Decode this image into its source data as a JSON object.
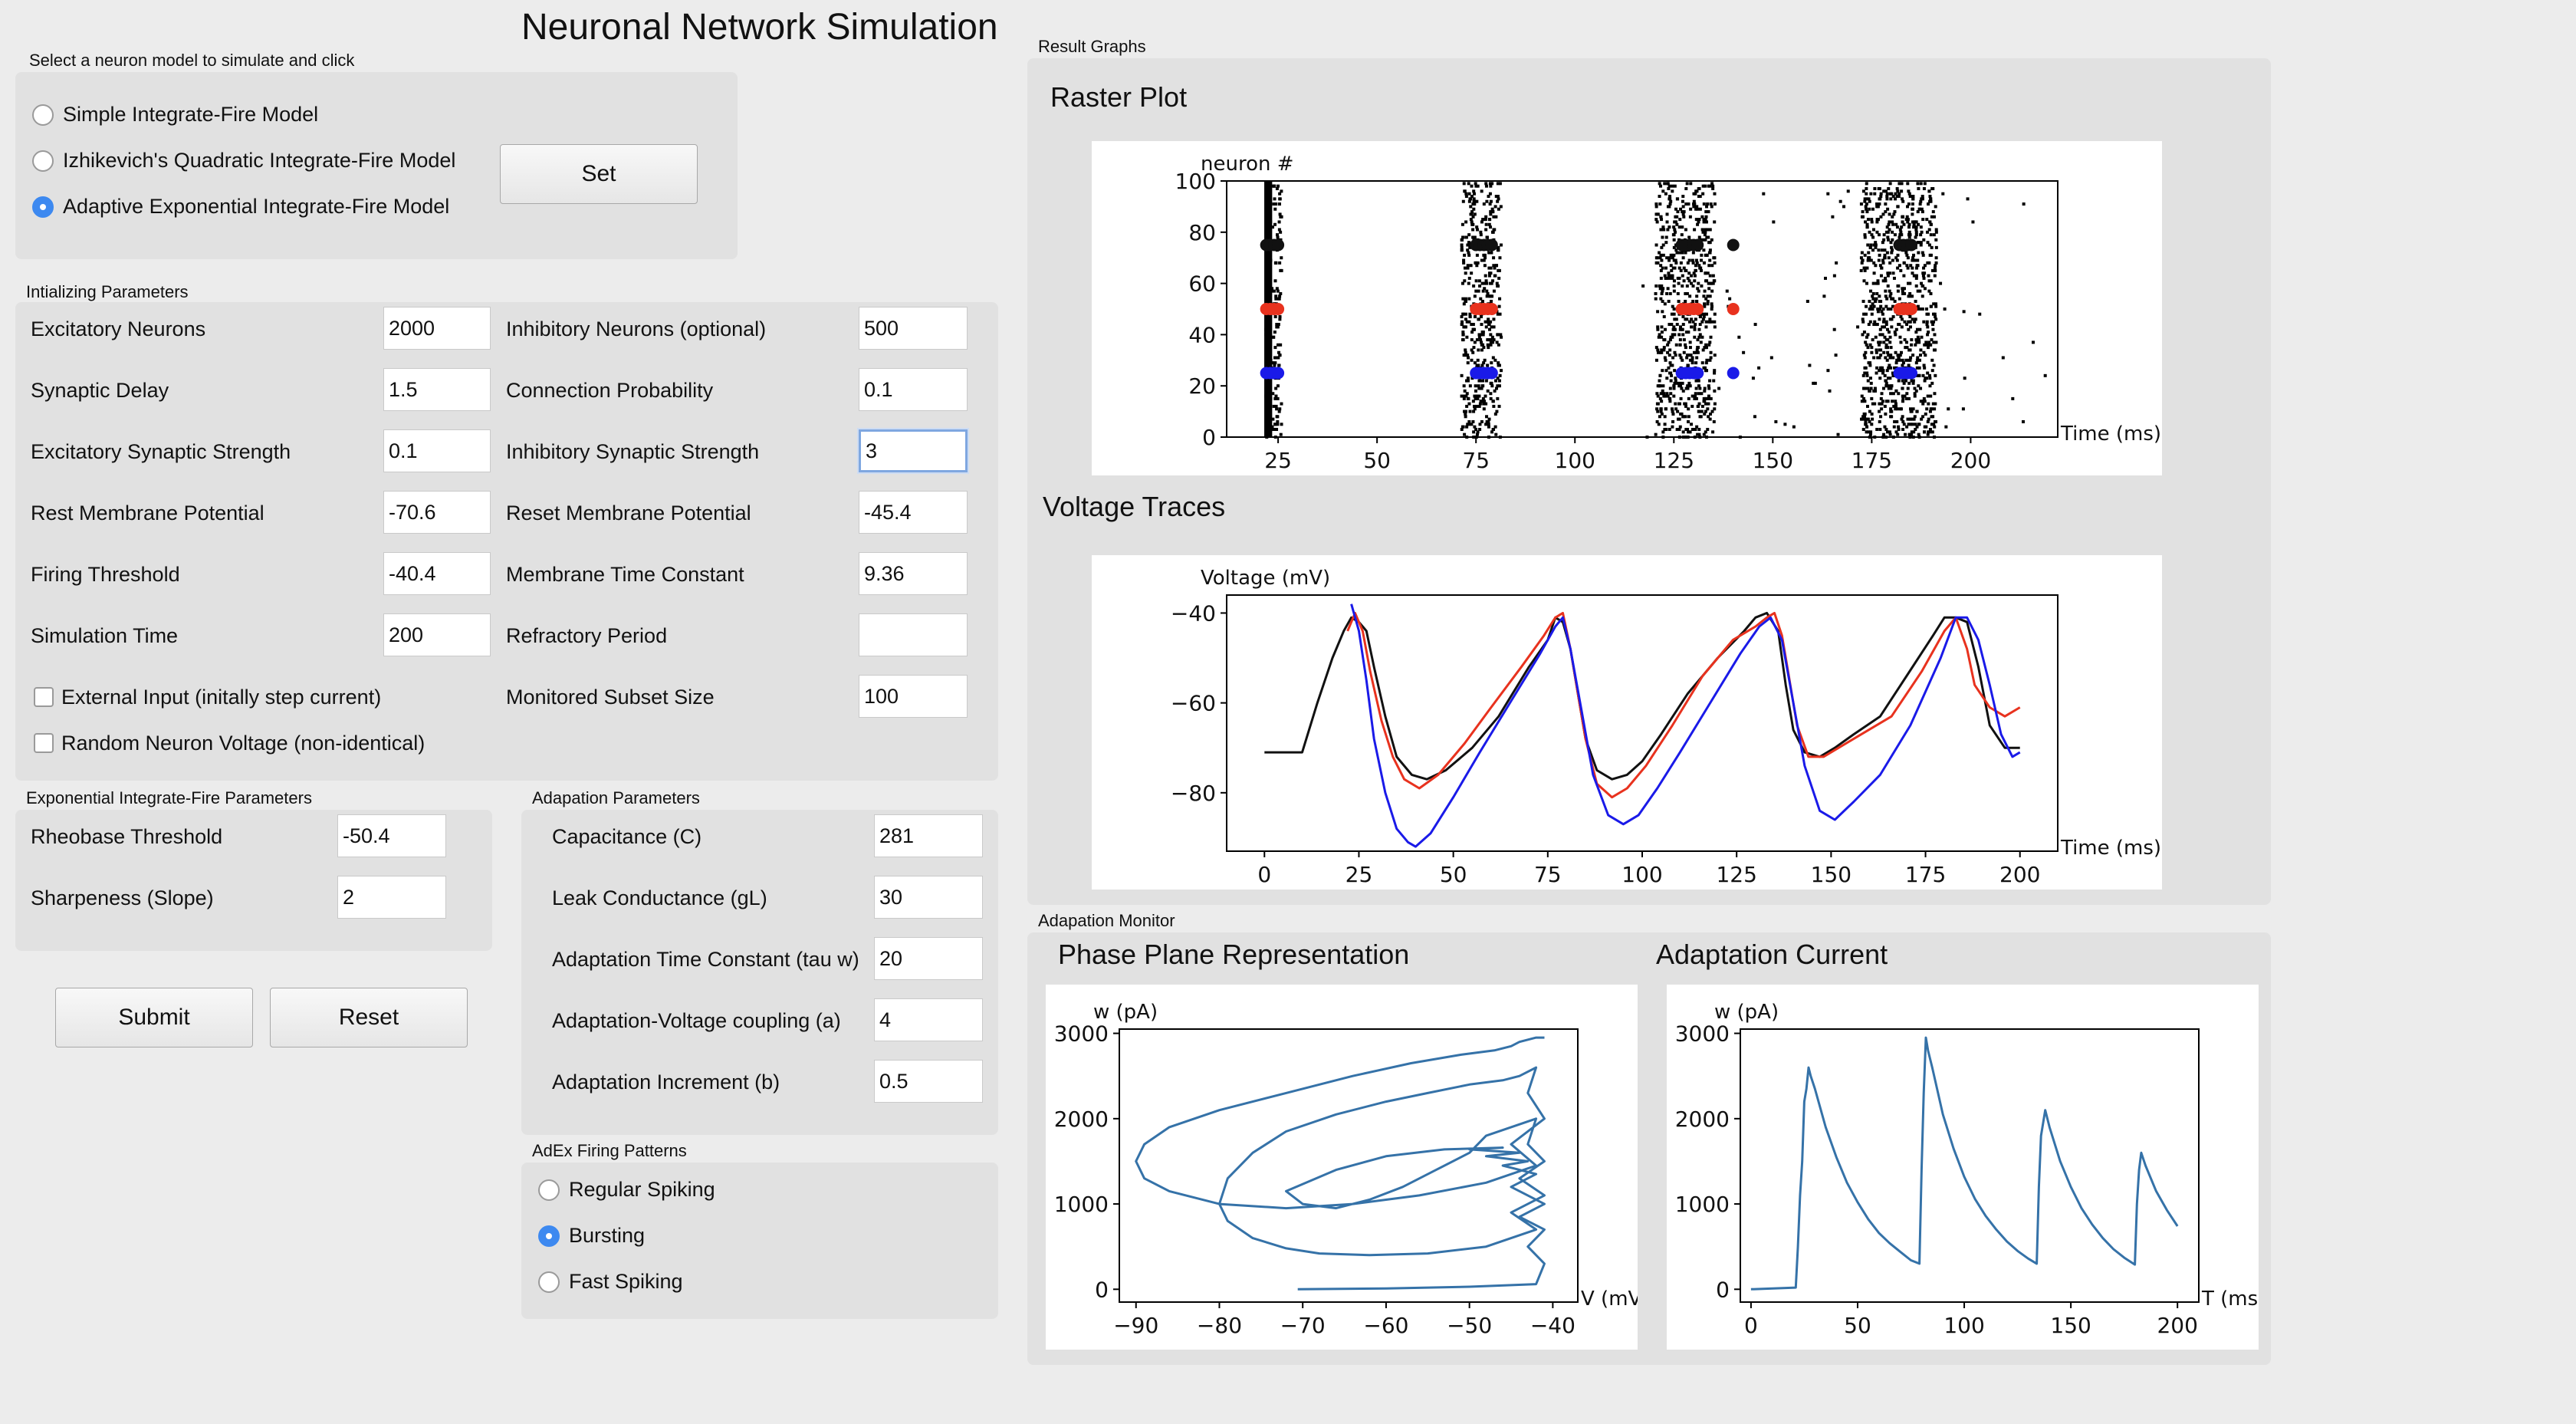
{
  "app_title": "Neuronal Network Simulation",
  "model_select": {
    "prompt": "Select a neuron model to simulate and click",
    "options": [
      {
        "label": "Simple Integrate-Fire Model",
        "selected": false
      },
      {
        "label": "Izhikevich's Quadratic Integrate-Fire Model",
        "selected": false
      },
      {
        "label": "Adaptive Exponential Integrate-Fire Model",
        "selected": true
      }
    ],
    "set_label": "Set"
  },
  "init_params": {
    "title": "Intializing Parameters",
    "excitatory_neurons": {
      "label": "Excitatory Neurons",
      "value": "2000"
    },
    "inhibitory_neurons": {
      "label": "Inhibitory Neurons (optional)",
      "value": "500"
    },
    "synaptic_delay": {
      "label": "Synaptic Delay",
      "value": "1.5"
    },
    "connection_probability": {
      "label": "Connection Probability",
      "value": "0.1"
    },
    "excitatory_strength": {
      "label": "Excitatory Synaptic Strength",
      "value": "0.1"
    },
    "inhibitory_strength": {
      "label": "Inhibitory Synaptic Strength",
      "value": "3"
    },
    "rest_potential": {
      "label": "Rest Membrane Potential",
      "value": "-70.6"
    },
    "reset_potential": {
      "label": "Reset Membrane Potential",
      "value": "-45.4"
    },
    "firing_threshold": {
      "label": "Firing Threshold",
      "value": "-40.4"
    },
    "membrane_time_constant": {
      "label": "Membrane Time Constant",
      "value": "9.36"
    },
    "simulation_time": {
      "label": "Simulation Time",
      "value": "200"
    },
    "refractory_period": {
      "label": "Refractory Period",
      "value": ""
    },
    "external_input": {
      "label": "External Input (initally step current)",
      "checked": false
    },
    "monitored_subset": {
      "label": "Monitored Subset Size",
      "value": "100"
    },
    "random_voltage": {
      "label": "Random Neuron Voltage (non-identical)",
      "checked": false
    }
  },
  "exp_params": {
    "title": "Exponential Integrate-Fire Parameters",
    "rheobase": {
      "label": "Rheobase Threshold",
      "value": "-50.4"
    },
    "sharpness": {
      "label": "Sharpeness (Slope)",
      "value": "2"
    }
  },
  "adapt_params": {
    "title": "Adapation Parameters",
    "capacitance": {
      "label": "Capacitance (C)",
      "value": "281"
    },
    "leak": {
      "label": "Leak Conductance (gL)",
      "value": "30"
    },
    "tau_w": {
      "label": "Adaptation Time Constant (tau w)",
      "value": "20"
    },
    "coupling": {
      "label": "Adaptation-Voltage coupling (a)",
      "value": "4"
    },
    "increment": {
      "label": "Adaptation Increment (b)",
      "value": "0.5"
    }
  },
  "firing_patterns": {
    "title": "AdEx Firing Patterns",
    "options": [
      {
        "label": "Regular Spiking",
        "selected": false
      },
      {
        "label": "Bursting",
        "selected": true
      },
      {
        "label": "Fast Spiking",
        "selected": false
      }
    ]
  },
  "buttons": {
    "submit": "Submit",
    "reset": "Reset"
  },
  "result_graphs": {
    "title": "Result Graphs"
  },
  "adaptation_monitor": {
    "title": "Adapation Monitor"
  },
  "chart_data": [
    {
      "id": "raster",
      "type": "scatter",
      "title": "Raster Plot",
      "xlabel": "Time (ms)",
      "ylabel": "neuron #",
      "xlim": [
        12,
        222
      ],
      "ylim": [
        0,
        100
      ],
      "xticks": [
        25,
        50,
        75,
        100,
        125,
        150,
        175,
        200
      ],
      "yticks": [
        0,
        20,
        40,
        60,
        80,
        100
      ],
      "burst_windows": [
        [
          21.5,
          25.5
        ],
        [
          71,
          81
        ],
        [
          120,
          135
        ],
        [
          172,
          191
        ]
      ],
      "solid_band": [
        21.5,
        23.5
      ],
      "highlight_markers": [
        {
          "color": "#111111",
          "y": 75,
          "x": [
            22,
            23,
            24,
            25,
            75,
            76,
            77,
            78,
            79,
            127,
            128,
            129,
            130,
            131,
            140,
            182,
            183,
            184,
            185
          ]
        },
        {
          "color": "#e8321e",
          "y": 50,
          "x": [
            22,
            23,
            24,
            25,
            75,
            76,
            77,
            78,
            79,
            127,
            128,
            129,
            130,
            131,
            140,
            182,
            183,
            184,
            185
          ]
        },
        {
          "color": "#1a1ae8",
          "y": 25,
          "x": [
            22,
            23,
            24,
            25,
            75,
            76,
            77,
            78,
            79,
            127,
            128,
            129,
            130,
            131,
            140,
            182,
            183,
            184,
            185
          ]
        }
      ]
    },
    {
      "id": "voltage",
      "type": "line",
      "title": "Voltage Traces",
      "xlabel": "Time (ms)",
      "ylabel": "Voltage (mV)",
      "xlim": [
        -10,
        210
      ],
      "ylim": [
        -93,
        -36
      ],
      "xticks": [
        0,
        25,
        50,
        75,
        100,
        125,
        150,
        175,
        200
      ],
      "yticks": [
        -40,
        -60,
        -80
      ],
      "series": [
        {
          "color": "#111111",
          "x": [
            0,
            10,
            14,
            18,
            21,
            23,
            25,
            27,
            29,
            32,
            35,
            39,
            43,
            48,
            55,
            62,
            70,
            75,
            77,
            79,
            81,
            83,
            85,
            88,
            92,
            96,
            100,
            105,
            112,
            120,
            127,
            130,
            133,
            136,
            138,
            140,
            143,
            147,
            151,
            156,
            163,
            170,
            177,
            180,
            183,
            186,
            189,
            192,
            196,
            200
          ],
          "y": [
            -71,
            -71,
            -60,
            -50,
            -44,
            -41,
            -42,
            -44,
            -52,
            -63,
            -72,
            -76,
            -77,
            -75,
            -70,
            -63,
            -52,
            -46,
            -41,
            -42,
            -48,
            -58,
            -68,
            -75,
            -77,
            -76,
            -73,
            -67,
            -58,
            -50,
            -44,
            -41,
            -40,
            -44,
            -56,
            -66,
            -71,
            -72,
            -70,
            -67,
            -63,
            -54,
            -45,
            -41,
            -41,
            -42,
            -52,
            -65,
            -70,
            -70
          ]
        },
        {
          "color": "#e8321e",
          "x": [
            22,
            24,
            26,
            28,
            31,
            34,
            37,
            41,
            46,
            53,
            60,
            68,
            74,
            77,
            79,
            81,
            83,
            85,
            88,
            92,
            96,
            101,
            108,
            116,
            124,
            130,
            133,
            135,
            137,
            139,
            141,
            144,
            148,
            152,
            158,
            166,
            174,
            180,
            183,
            186,
            188,
            192,
            196,
            200
          ],
          "y": [
            -44,
            -40,
            -44,
            -53,
            -64,
            -72,
            -77,
            -79,
            -76,
            -69,
            -61,
            -52,
            -45,
            -41,
            -40,
            -48,
            -58,
            -68,
            -78,
            -81,
            -79,
            -74,
            -65,
            -54,
            -46,
            -43,
            -41,
            -40,
            -45,
            -55,
            -65,
            -72,
            -72,
            -70,
            -67,
            -63,
            -53,
            -44,
            -41,
            -48,
            -56,
            -61,
            -63,
            -61
          ]
        },
        {
          "color": "#1a1ae8",
          "x": [
            23,
            25,
            27,
            29,
            32,
            35,
            38,
            40,
            44,
            50,
            57,
            65,
            73,
            77,
            79,
            81,
            84,
            87,
            91,
            95,
            99,
            104,
            110,
            118,
            126,
            131,
            134,
            137,
            140,
            143,
            147,
            151,
            156,
            163,
            171,
            179,
            183,
            186,
            189,
            192,
            195,
            198,
            200
          ],
          "y": [
            -38,
            -44,
            -55,
            -68,
            -80,
            -88,
            -91,
            -92,
            -89,
            -81,
            -71,
            -60,
            -49,
            -43,
            -41,
            -48,
            -62,
            -76,
            -85,
            -87,
            -85,
            -79,
            -71,
            -60,
            -49,
            -43,
            -41,
            -46,
            -60,
            -74,
            -84,
            -86,
            -82,
            -76,
            -65,
            -50,
            -41,
            -41,
            -46,
            -56,
            -67,
            -72,
            -71
          ]
        }
      ]
    },
    {
      "id": "phase",
      "type": "line",
      "title": "Phase Plane Representation",
      "xlabel": "V (mV)",
      "ylabel": "w (pA)",
      "xlim": [
        -92,
        -37
      ],
      "ylim": [
        -150,
        3050
      ],
      "xticks": [
        -90,
        -80,
        -70,
        -60,
        -50,
        -40
      ],
      "yticks": [
        0,
        1000,
        2000,
        3000
      ],
      "series": [
        {
          "color": "#3572a8",
          "v": [
            -70.6,
            -60,
            -50,
            -42,
            -41,
            -43,
            -41,
            -44,
            -41,
            -45,
            -42,
            -46,
            -43,
            -48,
            -44,
            -50,
            -46,
            -53,
            -60,
            -66,
            -72,
            -70,
            -66,
            -62,
            -58,
            -54,
            -50,
            -48,
            -45,
            -42,
            -43,
            -41,
            -44,
            -41,
            -45,
            -42,
            -48,
            -55,
            -62,
            -68,
            -72,
            -76,
            -79,
            -80,
            -79,
            -76,
            -72,
            -66,
            -60,
            -55,
            -50,
            -46,
            -44,
            -42,
            -43,
            -41,
            -45,
            -42,
            -48,
            -56,
            -64,
            -72,
            -80,
            -86,
            -89,
            -90,
            -89,
            -86,
            -80,
            -72,
            -64,
            -57,
            -51,
            -47,
            -45,
            -44,
            -42,
            -41
          ],
          "w": [
            0,
            10,
            30,
            60,
            300,
            500,
            700,
            850,
            1000,
            1200,
            1350,
            1450,
            1500,
            1560,
            1600,
            1640,
            1660,
            1640,
            1560,
            1400,
            1150,
            1000,
            950,
            1050,
            1200,
            1400,
            1600,
            1800,
            1900,
            2000,
            1700,
            1500,
            1300,
            1100,
            900,
            700,
            500,
            420,
            400,
            420,
            480,
            600,
            800,
            1000,
            1300,
            1600,
            1850,
            2050,
            2200,
            2300,
            2400,
            2450,
            2500,
            2600,
            2300,
            2000,
            1700,
            1450,
            1250,
            1100,
            1000,
            950,
            1000,
            1150,
            1300,
            1500,
            1700,
            1900,
            2100,
            2300,
            2500,
            2650,
            2750,
            2800,
            2850,
            2900,
            2950,
            2950
          ]
        }
      ]
    },
    {
      "id": "adaptation",
      "type": "line",
      "title": "Adaptation Current",
      "xlabel": "T (ms)",
      "ylabel": "w (pA)",
      "xlim": [
        -5,
        210
      ],
      "ylim": [
        -150,
        3050
      ],
      "xticks": [
        0,
        50,
        100,
        150,
        200
      ],
      "yticks": [
        0,
        1000,
        2000,
        3000
      ],
      "series": [
        {
          "color": "#3572a8",
          "x": [
            0,
            21,
            22,
            23,
            24,
            25,
            26,
            27,
            28,
            30,
            35,
            40,
            45,
            50,
            55,
            60,
            65,
            70,
            75,
            79,
            80,
            81,
            82,
            83,
            85,
            90,
            95,
            100,
            105,
            110,
            115,
            120,
            125,
            130,
            134,
            135,
            136,
            138,
            140,
            145,
            150,
            155,
            160,
            165,
            170,
            175,
            180,
            181,
            182,
            183,
            185,
            190,
            195,
            200
          ],
          "y": [
            0,
            20,
            500,
            1100,
            1500,
            2200,
            2350,
            2600,
            2500,
            2350,
            1900,
            1550,
            1250,
            1020,
            820,
            660,
            540,
            440,
            340,
            300,
            1400,
            2300,
            2950,
            2800,
            2600,
            2050,
            1650,
            1320,
            1060,
            860,
            700,
            560,
            450,
            360,
            300,
            1200,
            1800,
            2100,
            1900,
            1500,
            1200,
            950,
            760,
            600,
            470,
            370,
            290,
            1000,
            1400,
            1600,
            1450,
            1150,
            930,
            740
          ]
        }
      ]
    }
  ]
}
